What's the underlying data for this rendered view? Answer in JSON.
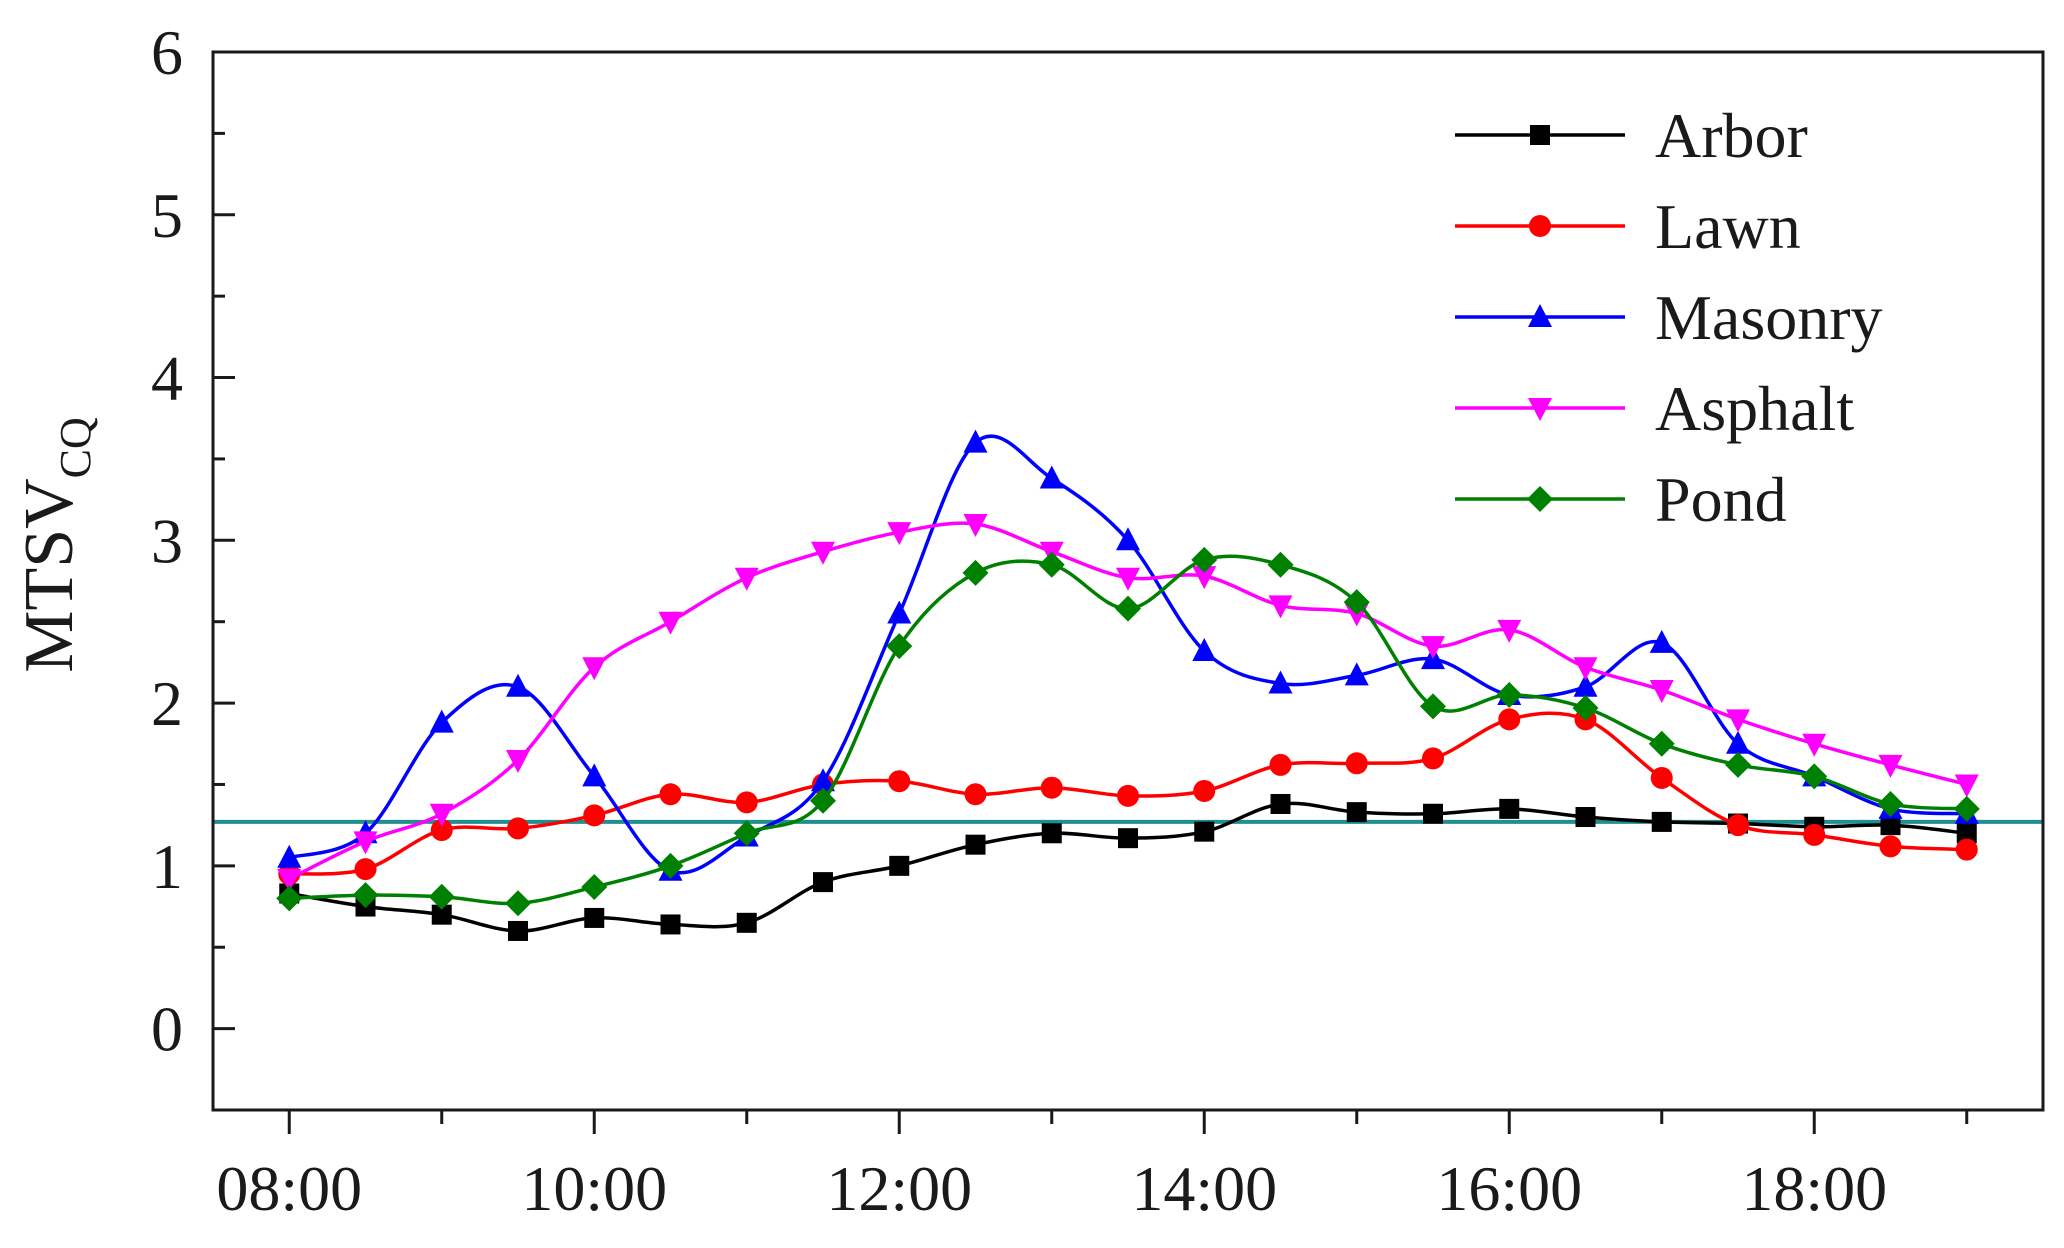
{
  "chart_data": {
    "type": "line",
    "title": "",
    "xlabel": "",
    "ylabel": "MTSV",
    "ylabel_subscript": "CQ",
    "x": [
      "08:00",
      "08:30",
      "09:00",
      "09:30",
      "10:00",
      "10:30",
      "11:00",
      "11:30",
      "12:00",
      "12:30",
      "13:00",
      "13:30",
      "14:00",
      "14:30",
      "15:00",
      "15:30",
      "16:00",
      "16:30",
      "17:00",
      "17:30",
      "18:00",
      "18:30",
      "19:00"
    ],
    "x_hours": [
      8,
      8.5,
      9,
      9.5,
      10,
      10.5,
      11,
      11.5,
      12,
      12.5,
      13,
      13.5,
      14,
      14.5,
      15,
      15.5,
      16,
      16.5,
      17,
      17.5,
      18,
      18.5,
      19
    ],
    "xticks": [
      "08:00",
      "10:00",
      "12:00",
      "14:00",
      "16:00",
      "18:00"
    ],
    "xtick_hours": [
      8,
      10,
      12,
      14,
      16,
      18
    ],
    "xlim_hours": [
      7.5,
      19.5
    ],
    "ylim": [
      -0.5,
      6
    ],
    "yticks": [
      0,
      1,
      2,
      3,
      4,
      5,
      6
    ],
    "grid": false,
    "legend_position": "top-right",
    "reference_line": {
      "y": 1.27,
      "color": "#1f8f8f"
    },
    "series": [
      {
        "name": "Arbor",
        "color": "#000000",
        "marker": "square",
        "values": [
          0.83,
          0.75,
          0.7,
          0.6,
          0.68,
          0.64,
          0.65,
          0.9,
          1.0,
          1.13,
          1.2,
          1.17,
          1.21,
          1.38,
          1.33,
          1.32,
          1.35,
          1.3,
          1.27,
          1.26,
          1.24,
          1.25,
          1.2
        ]
      },
      {
        "name": "Lawn",
        "color": "#ff0000",
        "marker": "circle",
        "values": [
          0.95,
          0.98,
          1.22,
          1.23,
          1.31,
          1.44,
          1.39,
          1.5,
          1.52,
          1.44,
          1.48,
          1.43,
          1.46,
          1.62,
          1.63,
          1.66,
          1.9,
          1.9,
          1.54,
          1.25,
          1.19,
          1.12,
          1.1
        ]
      },
      {
        "name": "Masonry",
        "color": "#0000ff",
        "marker": "triangle-up",
        "values": [
          1.05,
          1.2,
          1.88,
          2.1,
          1.55,
          0.97,
          1.18,
          1.52,
          2.55,
          3.6,
          3.38,
          3.0,
          2.32,
          2.12,
          2.17,
          2.27,
          2.05,
          2.1,
          2.37,
          1.75,
          1.55,
          1.35,
          1.32
        ]
      },
      {
        "name": "Asphalt",
        "color": "#ff00ff",
        "marker": "triangle-down",
        "values": [
          0.92,
          1.15,
          1.32,
          1.65,
          2.22,
          2.5,
          2.77,
          2.93,
          3.05,
          3.1,
          2.93,
          2.77,
          2.78,
          2.6,
          2.55,
          2.35,
          2.45,
          2.22,
          2.08,
          1.9,
          1.75,
          1.62,
          1.5
        ]
      },
      {
        "name": "Pond",
        "color": "#008000",
        "marker": "diamond",
        "values": [
          0.8,
          0.82,
          0.81,
          0.77,
          0.87,
          1.0,
          1.2,
          1.4,
          2.35,
          2.8,
          2.85,
          2.58,
          2.88,
          2.85,
          2.62,
          1.98,
          2.05,
          1.97,
          1.75,
          1.62,
          1.55,
          1.38,
          1.35
        ]
      }
    ]
  }
}
